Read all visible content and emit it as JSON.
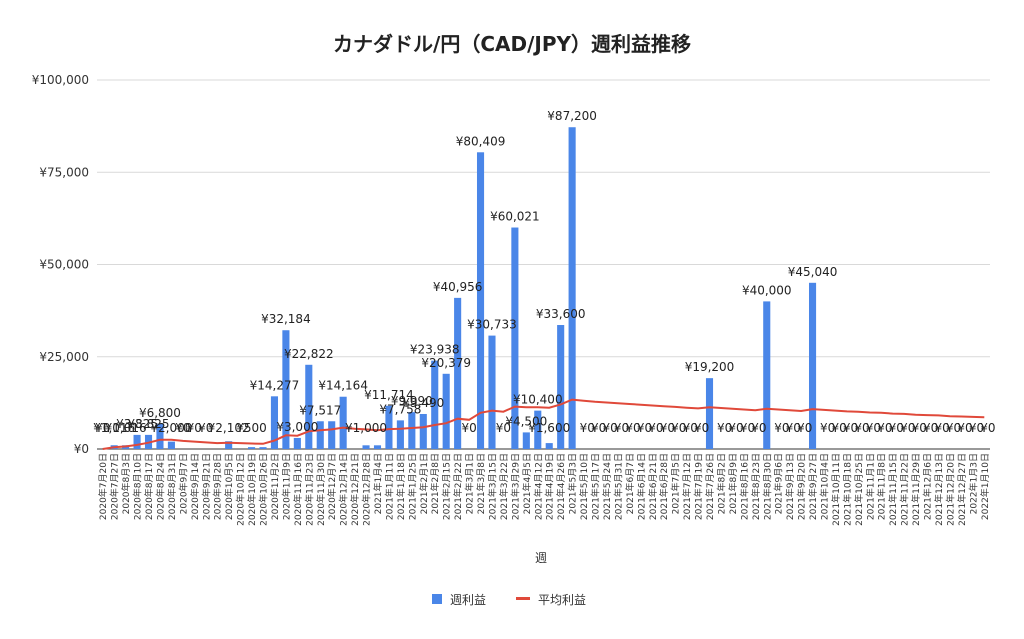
{
  "chart_data": {
    "type": "bar",
    "title": "カナダドル/円（CAD/JPY）週利益推移",
    "xlabel": "週",
    "ylabel": "",
    "ylim": [
      0,
      100000
    ],
    "y_ticks": [
      "¥0",
      "¥25,000",
      "¥50,000",
      "¥75,000",
      "¥100,000"
    ],
    "y_tick_values": [
      0,
      25000,
      50000,
      75000,
      100000
    ],
    "grid": true,
    "legend_position": "bottom",
    "colors": {
      "bar": "#4a86e8",
      "line": "#e0493a",
      "grid": "#d9d9d9",
      "axis_text": "#333333"
    },
    "categories": [
      "2020年7月20日",
      "2020年7月27日",
      "2020年8月3日",
      "2020年8月10日",
      "2020年8月17日",
      "2020年8月24日",
      "2020年8月31日",
      "2020年9月7日",
      "2020年9月14日",
      "2020年9月21日",
      "2020年9月28日",
      "2020年10月5日",
      "2020年10月12日",
      "2020年10月19日",
      "2020年10月26日",
      "2020年11月2日",
      "2020年11月9日",
      "2020年11月16日",
      "2020年11月23日",
      "2020年11月30日",
      "2020年12月7日",
      "2020年12月14日",
      "2020年12月21日",
      "2020年12月28日",
      "2021年1月4日",
      "2021年1月11日",
      "2021年1月18日",
      "2021年1月25日",
      "2021年2月1日",
      "2021年2月8日",
      "2021年2月15日",
      "2021年2月22日",
      "2021年3月1日",
      "2021年3月8日",
      "2021年3月15日",
      "2021年3月22日",
      "2021年3月29日",
      "2021年4月5日",
      "2021年4月12日",
      "2021年4月19日",
      "2021年4月26日",
      "2021年5月3日",
      "2021年5月10日",
      "2021年5月17日",
      "2021年5月24日",
      "2021年5月31日",
      "2021年6月7日",
      "2021年6月14日",
      "2021年6月21日",
      "2021年6月28日",
      "2021年7月5日",
      "2021年7月12日",
      "2021年7月19日",
      "2021年7月26日",
      "2021年8月2日",
      "2021年8月9日",
      "2021年8月16日",
      "2021年8月23日",
      "2021年8月30日",
      "2021年9月6日",
      "2021年9月13日",
      "2021年9月20日",
      "2021年9月27日",
      "2021年10月4日",
      "2021年10月11日",
      "2021年10月18日",
      "2021年10月25日",
      "2021年11月1日",
      "2021年11月8日",
      "2021年11月15日",
      "2021年11月22日",
      "2021年11月29日",
      "2021年12月6日",
      "2021年12月13日",
      "2021年12月20日",
      "2021年12月27日",
      "2022年1月3日",
      "2022年1月10日"
    ],
    "series": [
      {
        "name": "週利益",
        "values": [
          0,
          1016,
          1016,
          3825,
          3825,
          6800,
          2000,
          0,
          0,
          0,
          0,
          2102,
          0,
          500,
          500,
          14277,
          32184,
          3000,
          22822,
          7517,
          7517,
          14164,
          0,
          1000,
          1000,
          11714,
          7758,
          9990,
          9490,
          23938,
          20379,
          40956,
          0,
          80409,
          30733,
          0,
          60021,
          4500,
          10400,
          1600,
          33600,
          87200,
          0,
          0,
          0,
          0,
          0,
          0,
          0,
          0,
          0,
          0,
          0,
          19200,
          0,
          0,
          0,
          0,
          40000,
          0,
          0,
          0,
          45040,
          0,
          0,
          0,
          0,
          0,
          0,
          0,
          0,
          0,
          0,
          0,
          0,
          0,
          0,
          0
        ]
      },
      {
        "name": "平均利益",
        "values": [
          0,
          500,
          700,
          1100,
          1700,
          2500,
          2500,
          2200,
          2000,
          1800,
          1600,
          1700,
          1600,
          1500,
          1400,
          2300,
          3700,
          3600,
          4800,
          5100,
          5300,
          5800,
          5500,
          5300,
          5100,
          5400,
          5500,
          5700,
          5900,
          6500,
          7000,
          8200,
          7900,
          9800,
          10400,
          10100,
          11500,
          11300,
          11300,
          11200,
          12100,
          13400,
          13100,
          12800,
          12600,
          12400,
          12200,
          12000,
          11800,
          11600,
          11400,
          11200,
          11000,
          11300,
          11100,
          10900,
          10700,
          10500,
          10900,
          10700,
          10500,
          10300,
          10800,
          10600,
          10400,
          10200,
          10100,
          9900,
          9800,
          9600,
          9500,
          9300,
          9200,
          9100,
          8900,
          8800,
          8700,
          8600
        ]
      }
    ],
    "data_labels": [
      {
        "i": 0,
        "text": "¥0"
      },
      {
        "i": 1,
        "text": "¥1,016"
      },
      {
        "i": 2,
        "text": "¥1,016"
      },
      {
        "i": 3,
        "text": "¥3,825"
      },
      {
        "i": 4,
        "text": "¥3,825"
      },
      {
        "i": 5,
        "text": "¥6,800"
      },
      {
        "i": 6,
        "text": "¥2,000"
      },
      {
        "i": 7,
        "text": "¥0"
      },
      {
        "i": 8,
        "text": "¥0"
      },
      {
        "i": 9,
        "text": "¥0"
      },
      {
        "i": 11,
        "text": "¥2,102"
      },
      {
        "i": 13,
        "text": "¥500"
      },
      {
        "i": 15,
        "text": "¥14,277"
      },
      {
        "i": 16,
        "text": "¥32,184"
      },
      {
        "i": 17,
        "text": "¥3,000"
      },
      {
        "i": 18,
        "text": "¥22,822"
      },
      {
        "i": 19,
        "text": "¥7,517"
      },
      {
        "i": 21,
        "text": "¥14,164"
      },
      {
        "i": 23,
        "text": "¥1,000"
      },
      {
        "i": 25,
        "text": "¥11,714"
      },
      {
        "i": 26,
        "text": "¥7,758"
      },
      {
        "i": 27,
        "text": "¥9,990"
      },
      {
        "i": 28,
        "text": "¥9,490"
      },
      {
        "i": 29,
        "text": "¥23,938"
      },
      {
        "i": 30,
        "text": "¥20,379"
      },
      {
        "i": 31,
        "text": "¥40,956"
      },
      {
        "i": 32,
        "text": "¥0"
      },
      {
        "i": 33,
        "text": "¥80,409"
      },
      {
        "i": 34,
        "text": "¥30,733"
      },
      {
        "i": 35,
        "text": "¥0"
      },
      {
        "i": 36,
        "text": "¥60,021"
      },
      {
        "i": 37,
        "text": "¥4,500"
      },
      {
        "i": 38,
        "text": "¥10,400"
      },
      {
        "i": 39,
        "text": "¥1,600"
      },
      {
        "i": 40,
        "text": "¥33,600"
      },
      {
        "i": 41,
        "text": "¥87,200"
      },
      {
        "i": 53,
        "text": "¥19,200"
      },
      {
        "i": 58,
        "text": "¥40,000"
      },
      {
        "i": 62,
        "text": "¥45,040"
      }
    ]
  }
}
